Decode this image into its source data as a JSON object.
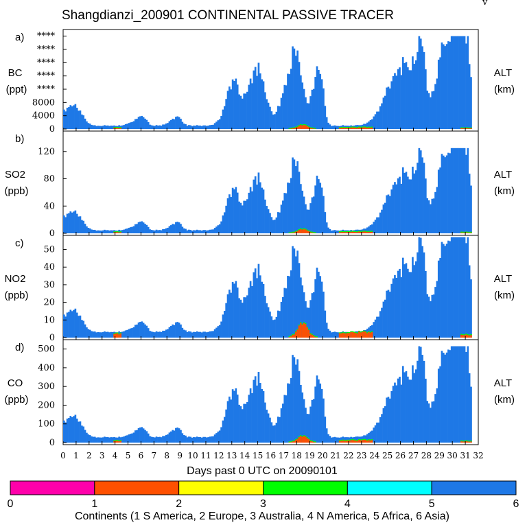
{
  "chart_data": {
    "type": "area",
    "title": "Shangdianzi_200901 CONTINENTAL PASSIVE TRACER",
    "corner_mark": "v",
    "xlabel": "Days past 0 UTC on 20090101",
    "xlim": [
      0,
      32
    ],
    "x_ticks": [
      "0",
      "1",
      "2",
      "3",
      "4",
      "5",
      "6",
      "7",
      "8",
      "9",
      "10",
      "11",
      "12",
      "13",
      "14",
      "15",
      "16",
      "17",
      "18",
      "19",
      "20",
      "21",
      "22",
      "23",
      "24",
      "25",
      "26",
      "27",
      "28",
      "29",
      "30",
      "31",
      "32"
    ],
    "right_label": "ALT",
    "right_unit": "(km)",
    "peaks": [
      [
        0.8,
        1.0,
        0.22
      ],
      [
        6,
        0.6,
        0.1
      ],
      [
        8.8,
        0.5,
        0.1
      ],
      [
        13.1,
        0.6,
        0.4
      ],
      [
        15.0,
        1.0,
        0.6
      ],
      [
        17.9,
        0.8,
        0.8
      ],
      [
        19.7,
        0.5,
        0.65
      ],
      [
        26.0,
        1.1,
        0.6
      ],
      [
        27.5,
        0.6,
        0.85
      ],
      [
        29.6,
        0.8,
        1.0
      ],
      [
        30.5,
        0.3,
        0.95
      ],
      [
        31.1,
        0.5,
        0.86
      ]
    ],
    "series_colors": {
      "1": "#ff5000",
      "2": "#ffff00",
      "3": "#00ff00",
      "4": "#00ffff",
      "5": "#0080ff",
      "6": "#1e78e6"
    },
    "panels": [
      {
        "letter": "a)",
        "name": "BC",
        "unit": "(ppt)",
        "ylim": [
          0,
          30000
        ],
        "yticks": [
          {
            "v": 0,
            "label": "0"
          },
          {
            "v": 4000,
            "label": "4000"
          },
          {
            "v": 8000,
            "label": "8000"
          },
          {
            "v": 12000,
            "label": "****"
          },
          {
            "v": 16000,
            "label": "****"
          },
          {
            "v": 20000,
            "label": "****"
          },
          {
            "v": 24000,
            "label": "****"
          },
          {
            "v": 28000,
            "label": "****"
          }
        ],
        "peak_value": 28000,
        "baseline": 0.03,
        "orange_scale": 0.045
      },
      {
        "letter": "b)",
        "name": "SO2",
        "unit": "(ppb)",
        "ylim": [
          0,
          150
        ],
        "yticks": [
          {
            "v": 0,
            "label": "0"
          },
          {
            "v": 40,
            "label": "40"
          },
          {
            "v": 80,
            "label": "80"
          },
          {
            "v": 120,
            "label": "120"
          }
        ],
        "peak_value": 125,
        "baseline": 0.03,
        "orange_scale": 0.05
      },
      {
        "letter": "c)",
        "name": "NO2",
        "unit": "(ppb)",
        "ylim": [
          0,
          58
        ],
        "yticks": [
          {
            "v": 0,
            "label": "0"
          },
          {
            "v": 10,
            "label": "10"
          },
          {
            "v": 20,
            "label": "20"
          },
          {
            "v": 30,
            "label": "30"
          },
          {
            "v": 40,
            "label": "40"
          },
          {
            "v": 50,
            "label": "50"
          }
        ],
        "peak_value": 57,
        "baseline": 0.05,
        "orange_scale": 0.15
      },
      {
        "letter": "d)",
        "name": "CO",
        "unit": "(ppb)",
        "ylim": [
          0,
          550
        ],
        "yticks": [
          {
            "v": 0,
            "label": "0"
          },
          {
            "v": 100,
            "label": "100"
          },
          {
            "v": 200,
            "label": "200"
          },
          {
            "v": 300,
            "label": "300"
          },
          {
            "v": 400,
            "label": "400"
          },
          {
            "v": 500,
            "label": "500"
          }
        ],
        "peak_value": 515,
        "baseline": 0.05,
        "orange_scale": 0.07
      }
    ],
    "legend": {
      "title": "Continents (1 S America, 2 Europe, 3 Australia, 4 N America, 5 Africa, 6 Asia)",
      "labels": [
        "0",
        "1",
        "2",
        "3",
        "4",
        "5",
        "6"
      ],
      "colors": [
        "#ff00aa",
        "#ff5000",
        "#ffff00",
        "#00ff00",
        "#00ffff",
        "#1e78e6"
      ]
    }
  }
}
